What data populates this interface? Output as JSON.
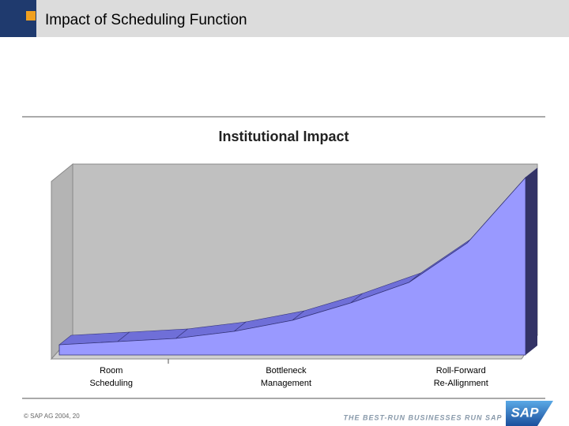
{
  "slide": {
    "title": "Impact of Scheduling Function",
    "footer": "© SAP AG 2004, 20",
    "tagline": "THE BEST-RUN BUSINESSES RUN SAP",
    "logo": "SAP"
  },
  "chart_data": {
    "type": "area",
    "title": "Institutional Impact",
    "categories": [
      null,
      "Room Scheduling",
      null,
      null,
      "Bottleneck Management",
      null,
      null,
      "Roll-Forward Re-Allignment",
      null
    ],
    "values": [
      13,
      17,
      21,
      30,
      44,
      66,
      92,
      142,
      225
    ],
    "color": "#9999ff",
    "ylim": [
      0,
      250
    ]
  }
}
